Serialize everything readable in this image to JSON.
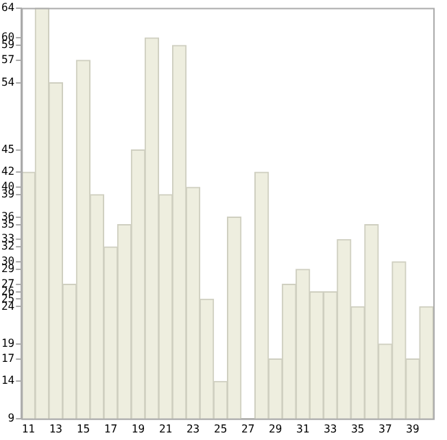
{
  "chart_data": {
    "type": "bar",
    "categories": [
      "11",
      null,
      "13",
      null,
      "15",
      null,
      "17",
      null,
      "19",
      null,
      "21",
      null,
      "23",
      null,
      "25",
      null,
      "27",
      null,
      "29",
      null,
      "31",
      null,
      "33",
      null,
      "35",
      null,
      "37",
      null,
      "39",
      null
    ],
    "values": [
      42,
      64,
      54,
      27,
      57,
      39,
      32,
      35,
      45,
      60,
      39,
      59,
      40,
      25,
      14,
      36,
      9,
      42,
      17,
      27,
      29,
      26,
      26,
      33,
      24,
      35,
      19,
      30,
      17,
      24
    ],
    "color": "#eeeedf",
    "ylim": [
      9,
      64
    ],
    "yticks": [
      9,
      14,
      17,
      19,
      24,
      25,
      26,
      27,
      29,
      30,
      32,
      33,
      35,
      36,
      39,
      40,
      42,
      45,
      54,
      57,
      59,
      60,
      64
    ],
    "grid": false
  }
}
